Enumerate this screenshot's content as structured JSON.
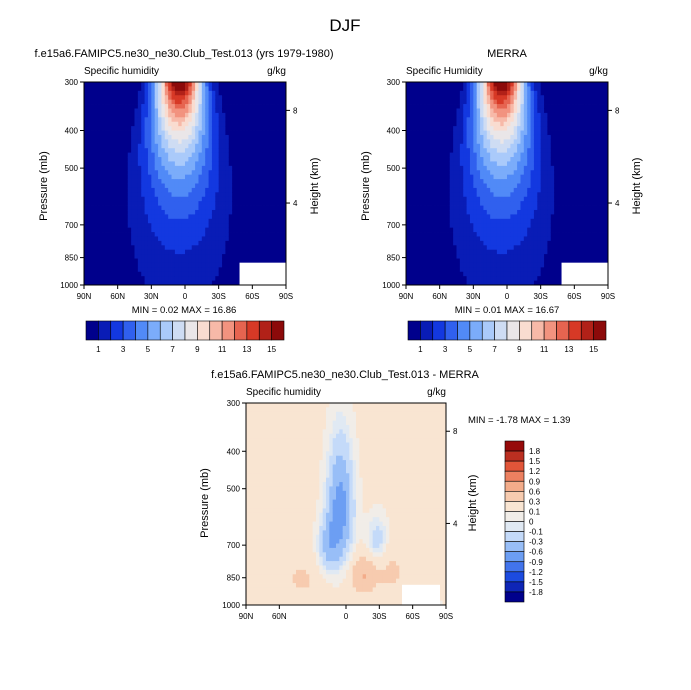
{
  "figure_title": "DJF",
  "chart_data": [
    {
      "type": "heatmap",
      "title": "f.e15a6.FAMIPC5.ne30_ne30.Club_Test.013 (yrs 1979-1980)",
      "left_label": "Specific humidity",
      "units": "g/kg",
      "ylabel": "Pressure (mb)",
      "ylabel_right": "Height (km)",
      "x_ticks": [
        "90N",
        "60N",
        "30N",
        "0",
        "30S",
        "60S",
        "90S"
      ],
      "y_ticks": [
        "300",
        "400",
        "500",
        "700",
        "850",
        "1000"
      ],
      "y_right_ticks": [
        "8",
        "4"
      ],
      "stats": "MIN =  0.02  MAX = 16.86",
      "field_min": 0.02,
      "field_max": 16.86,
      "peak_latitude": 5,
      "levels": [
        1,
        2,
        3,
        4,
        5,
        6,
        7,
        8,
        9,
        10,
        11,
        12,
        13,
        14,
        15
      ],
      "colorbar_labels": [
        "1",
        "3",
        "5",
        "7",
        "9",
        "11",
        "13",
        "15"
      ]
    },
    {
      "type": "heatmap",
      "title": "MERRA",
      "left_label": "Specific Humidity",
      "units": "g/kg",
      "ylabel": "Pressure (mb)",
      "ylabel_right": "Height (km)",
      "x_ticks": [
        "90N",
        "60N",
        "30N",
        "0",
        "30S",
        "60S",
        "90S"
      ],
      "y_ticks": [
        "300",
        "400",
        "500",
        "700",
        "850",
        "1000"
      ],
      "y_right_ticks": [
        "8",
        "4"
      ],
      "stats": "MIN =  0.01  MAX = 16.67",
      "field_min": 0.01,
      "field_max": 16.67,
      "peak_latitude": 5,
      "levels": [
        1,
        2,
        3,
        4,
        5,
        6,
        7,
        8,
        9,
        10,
        11,
        12,
        13,
        14,
        15
      ],
      "colorbar_labels": [
        "1",
        "3",
        "5",
        "7",
        "9",
        "11",
        "13",
        "15"
      ]
    },
    {
      "type": "heatmap",
      "title": "f.e15a6.FAMIPC5.ne30_ne30.Club_Test.013 - MERRA",
      "left_label": "Specific humidity",
      "units": "g/kg",
      "ylabel": "Pressure (mb)",
      "ylabel_right": "Height (km)",
      "x_ticks": [
        "90N",
        "60N",
        "0",
        "30S",
        "60S",
        "90S"
      ],
      "y_ticks": [
        "300",
        "400",
        "500",
        "700",
        "850",
        "1000"
      ],
      "y_right_ticks": [
        "8",
        "4"
      ],
      "stats": "MIN = -1.78  MAX =  1.39",
      "field_min": -1.78,
      "field_max": 1.39,
      "levels": [
        -1.8,
        -1.5,
        -1.2,
        -0.9,
        -0.6,
        -0.3,
        -0.1,
        0,
        0.1,
        0.3,
        0.6,
        0.9,
        1.2,
        1.5,
        1.8
      ],
      "colorbar_labels": [
        "1.8",
        "1.5",
        "1.2",
        "0.9",
        "0.6",
        "0.3",
        "0.1",
        "0",
        "-0.1",
        "-0.3",
        "-0.6",
        "-0.9",
        "-1.2",
        "-1.5",
        "-1.8"
      ]
    }
  ]
}
